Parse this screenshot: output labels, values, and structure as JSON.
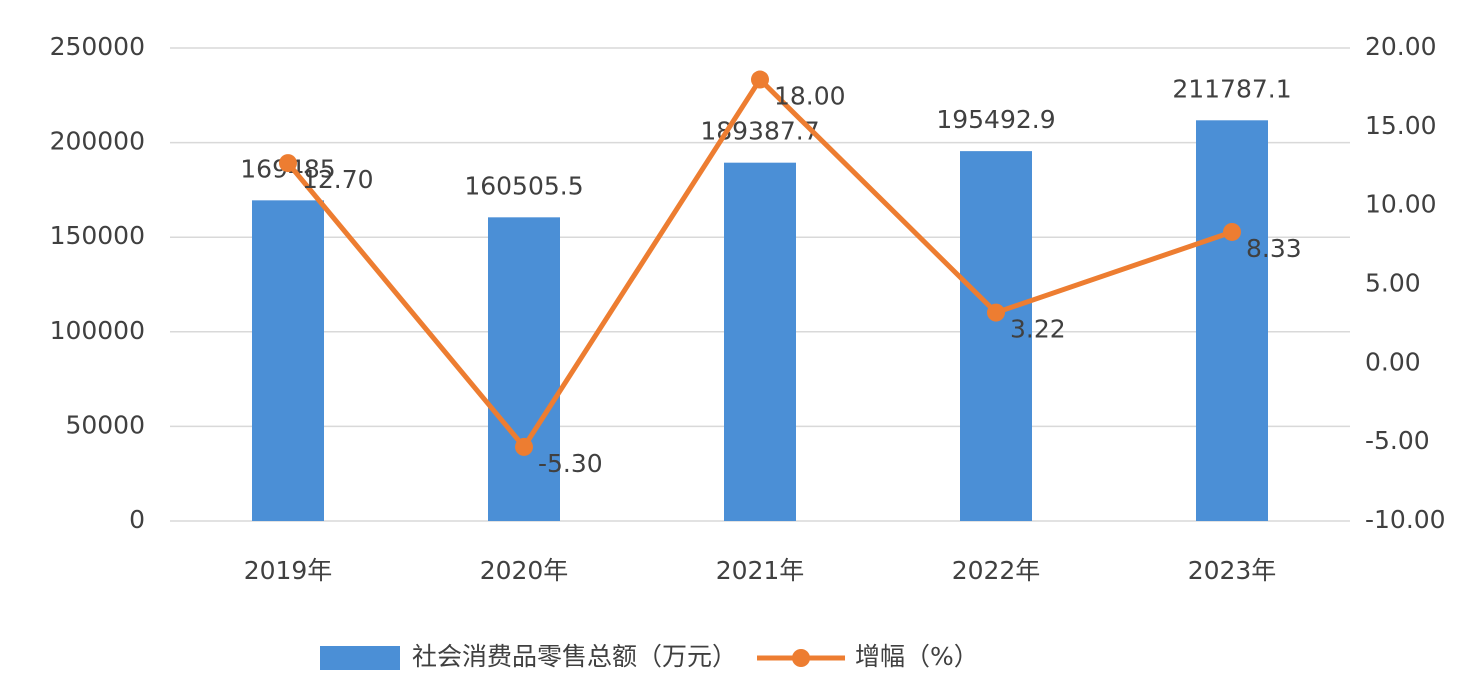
{
  "chart_data": {
    "type": "bar-line",
    "categories": [
      "2019年",
      "2020年",
      "2021年",
      "2022年",
      "2023年"
    ],
    "series": [
      {
        "name": "社会消费品零售总额（万元）",
        "type": "bar",
        "color": "#4b8fd6",
        "values": [
          169485,
          160505.5,
          189387.7,
          195492.9,
          211787.1
        ]
      },
      {
        "name": "增幅（%）",
        "type": "line",
        "axis": "y2",
        "color": "#ed7d31",
        "values": [
          12.7,
          -5.3,
          18.0,
          3.22,
          8.33
        ],
        "value_labels": [
          "12.70",
          "-5.30",
          "18.00",
          "3.22",
          "8.33"
        ]
      }
    ],
    "ylim": [
      0,
      250000
    ],
    "yticks": [
      0,
      50000,
      100000,
      150000,
      200000,
      250000
    ],
    "y2lim": [
      -10,
      20
    ],
    "y2ticks": [
      {
        "value": -10,
        "label": "-10.00"
      },
      {
        "value": -5,
        "label": "-5.00"
      },
      {
        "value": 0,
        "label": "0.00"
      },
      {
        "value": 5,
        "label": "5.00"
      },
      {
        "value": 10,
        "label": "10.00"
      },
      {
        "value": 15,
        "label": "15.00"
      },
      {
        "value": 20,
        "label": "20.00"
      }
    ],
    "grid": true,
    "legend": "bottom"
  }
}
